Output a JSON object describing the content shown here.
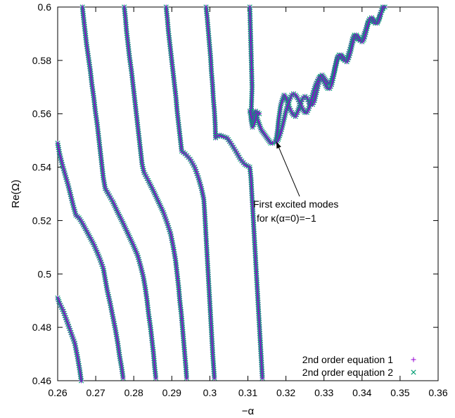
{
  "chart_data": {
    "type": "scatter",
    "xlabel": "−α",
    "ylabel": "Re(Ω)",
    "xlim": [
      0.26,
      0.36
    ],
    "ylim": [
      0.46,
      0.6
    ],
    "xticks": [
      "0.26",
      "0.27",
      "0.28",
      "0.29",
      "0.3",
      "0.31",
      "0.32",
      "0.33",
      "0.34",
      "0.35",
      "0.36"
    ],
    "yticks": [
      "0.46",
      "0.48",
      "0.5",
      "0.52",
      "0.54",
      "0.56",
      "0.58",
      "0.6"
    ],
    "grid": false,
    "legend_position": "bottom-right",
    "annotation": {
      "lines": [
        "First excited modes",
        "for κ(α=0)=−1"
      ],
      "arrow_to": [
        0.3175,
        0.5495
      ],
      "text_at": [
        0.321,
        0.528
      ]
    },
    "series": [
      {
        "name": "2nd order equation 1",
        "marker": "+",
        "color": "#9400d3"
      },
      {
        "name": "2nd order equation 2",
        "marker": "x",
        "color": "#009e73"
      }
    ],
    "branches": [
      [
        [
          0.26,
          0.491
        ],
        [
          0.2605,
          0.489
        ],
        [
          0.2615,
          0.486
        ],
        [
          0.2625,
          0.482
        ],
        [
          0.2635,
          0.478
        ],
        [
          0.2645,
          0.474
        ],
        [
          0.2652,
          0.469
        ],
        [
          0.2658,
          0.464
        ],
        [
          0.2662,
          0.46
        ]
      ],
      [
        [
          0.26,
          0.549
        ],
        [
          0.2605,
          0.545
        ],
        [
          0.2612,
          0.541
        ],
        [
          0.262,
          0.537
        ],
        [
          0.2628,
          0.533
        ],
        [
          0.2635,
          0.529
        ],
        [
          0.2642,
          0.525
        ],
        [
          0.2648,
          0.522
        ],
        [
          0.2656,
          0.521
        ],
        [
          0.2665,
          0.519
        ],
        [
          0.268,
          0.515
        ],
        [
          0.2695,
          0.511
        ],
        [
          0.271,
          0.506
        ],
        [
          0.272,
          0.502
        ],
        [
          0.2725,
          0.498
        ],
        [
          0.273,
          0.494
        ],
        [
          0.2738,
          0.489
        ],
        [
          0.2745,
          0.484
        ],
        [
          0.2752,
          0.479
        ],
        [
          0.2758,
          0.474
        ],
        [
          0.2763,
          0.469
        ],
        [
          0.2768,
          0.465
        ],
        [
          0.2772,
          0.461
        ]
      ],
      [
        [
          0.2665,
          0.6
        ],
        [
          0.2668,
          0.596
        ],
        [
          0.2672,
          0.591
        ],
        [
          0.2676,
          0.586
        ],
        [
          0.2681,
          0.581
        ],
        [
          0.2686,
          0.576
        ],
        [
          0.269,
          0.571
        ],
        [
          0.2695,
          0.566
        ],
        [
          0.2699,
          0.561
        ],
        [
          0.2704,
          0.556
        ],
        [
          0.2708,
          0.551
        ],
        [
          0.2712,
          0.546
        ],
        [
          0.2716,
          0.541
        ],
        [
          0.272,
          0.536
        ],
        [
          0.2725,
          0.532
        ],
        [
          0.2733,
          0.53
        ],
        [
          0.2745,
          0.527
        ],
        [
          0.2758,
          0.523
        ],
        [
          0.2772,
          0.519
        ],
        [
          0.2785,
          0.515
        ],
        [
          0.2798,
          0.511
        ],
        [
          0.281,
          0.507
        ],
        [
          0.2818,
          0.503
        ],
        [
          0.2825,
          0.499
        ],
        [
          0.283,
          0.495
        ],
        [
          0.2835,
          0.49
        ],
        [
          0.2839,
          0.485
        ],
        [
          0.2844,
          0.48
        ],
        [
          0.2848,
          0.475
        ],
        [
          0.2852,
          0.47
        ],
        [
          0.2855,
          0.465
        ],
        [
          0.2858,
          0.461
        ]
      ],
      [
        [
          0.2775,
          0.6
        ],
        [
          0.2778,
          0.596
        ],
        [
          0.2781,
          0.591
        ],
        [
          0.2785,
          0.586
        ],
        [
          0.2789,
          0.581
        ],
        [
          0.2794,
          0.576
        ],
        [
          0.2798,
          0.571
        ],
        [
          0.2802,
          0.566
        ],
        [
          0.2806,
          0.561
        ],
        [
          0.281,
          0.556
        ],
        [
          0.2814,
          0.551
        ],
        [
          0.2818,
          0.546
        ],
        [
          0.2822,
          0.541
        ],
        [
          0.2827,
          0.538
        ],
        [
          0.2838,
          0.535
        ],
        [
          0.2852,
          0.531
        ],
        [
          0.2865,
          0.527
        ],
        [
          0.2878,
          0.523
        ],
        [
          0.2888,
          0.519
        ],
        [
          0.2897,
          0.515
        ],
        [
          0.2904,
          0.51
        ],
        [
          0.291,
          0.505
        ],
        [
          0.2914,
          0.5
        ],
        [
          0.2918,
          0.495
        ],
        [
          0.2921,
          0.49
        ],
        [
          0.2925,
          0.485
        ],
        [
          0.2928,
          0.48
        ],
        [
          0.2931,
          0.475
        ],
        [
          0.2934,
          0.47
        ],
        [
          0.2937,
          0.465
        ],
        [
          0.2939,
          0.461
        ]
      ],
      [
        [
          0.2885,
          0.6
        ],
        [
          0.2888,
          0.596
        ],
        [
          0.2891,
          0.591
        ],
        [
          0.2895,
          0.586
        ],
        [
          0.2899,
          0.581
        ],
        [
          0.2903,
          0.576
        ],
        [
          0.2907,
          0.571
        ],
        [
          0.2911,
          0.566
        ],
        [
          0.2914,
          0.561
        ],
        [
          0.2918,
          0.556
        ],
        [
          0.2922,
          0.551
        ],
        [
          0.2926,
          0.546
        ],
        [
          0.2935,
          0.545
        ],
        [
          0.2948,
          0.543
        ],
        [
          0.296,
          0.54
        ],
        [
          0.297,
          0.536
        ],
        [
          0.2978,
          0.532
        ],
        [
          0.2984,
          0.528
        ],
        [
          0.2986,
          0.524
        ],
        [
          0.2988,
          0.519
        ],
        [
          0.299,
          0.514
        ],
        [
          0.2992,
          0.509
        ],
        [
          0.2994,
          0.504
        ],
        [
          0.2996,
          0.499
        ],
        [
          0.2998,
          0.494
        ],
        [
          0.3,
          0.489
        ],
        [
          0.3002,
          0.484
        ],
        [
          0.3004,
          0.479
        ],
        [
          0.3006,
          0.474
        ],
        [
          0.3008,
          0.469
        ],
        [
          0.301,
          0.465
        ],
        [
          0.3012,
          0.461
        ]
      ],
      [
        [
          0.299,
          0.6
        ],
        [
          0.2993,
          0.596
        ],
        [
          0.2996,
          0.591
        ],
        [
          0.2999,
          0.586
        ],
        [
          0.3002,
          0.581
        ],
        [
          0.3004,
          0.576
        ],
        [
          0.3007,
          0.571
        ],
        [
          0.3009,
          0.566
        ],
        [
          0.3012,
          0.561
        ],
        [
          0.3014,
          0.556
        ],
        [
          0.3015,
          0.551
        ],
        [
          0.3025,
          0.552
        ],
        [
          0.3045,
          0.551
        ],
        [
          0.3055,
          0.549
        ],
        [
          0.3068,
          0.546
        ],
        [
          0.308,
          0.543
        ],
        [
          0.3092,
          0.541
        ],
        [
          0.3105,
          0.54
        ],
        [
          0.3108,
          0.536
        ],
        [
          0.311,
          0.531
        ],
        [
          0.3112,
          0.526
        ],
        [
          0.3114,
          0.521
        ],
        [
          0.3116,
          0.516
        ],
        [
          0.3118,
          0.511
        ],
        [
          0.312,
          0.506
        ],
        [
          0.3122,
          0.501
        ],
        [
          0.3124,
          0.496
        ],
        [
          0.3126,
          0.491
        ],
        [
          0.3128,
          0.486
        ],
        [
          0.313,
          0.481
        ],
        [
          0.3132,
          0.476
        ],
        [
          0.3134,
          0.471
        ],
        [
          0.3136,
          0.466
        ],
        [
          0.3138,
          0.461
        ]
      ],
      [
        [
          0.3105,
          0.6
        ],
        [
          0.3106,
          0.595
        ],
        [
          0.3107,
          0.59
        ],
        [
          0.3108,
          0.585
        ],
        [
          0.3109,
          0.58
        ],
        [
          0.311,
          0.575
        ],
        [
          0.3111,
          0.57
        ],
        [
          0.311,
          0.566
        ],
        [
          0.3109,
          0.562
        ],
        [
          0.3108,
          0.558
        ],
        [
          0.3112,
          0.555
        ],
        [
          0.3115,
          0.56
        ],
        [
          0.312,
          0.561
        ],
        [
          0.3125,
          0.558
        ],
        [
          0.313,
          0.556
        ],
        [
          0.3135,
          0.554
        ],
        [
          0.314,
          0.553
        ],
        [
          0.3145,
          0.552
        ],
        [
          0.315,
          0.551
        ],
        [
          0.3155,
          0.55
        ],
        [
          0.316,
          0.549
        ],
        [
          0.3165,
          0.549
        ],
        [
          0.3172,
          0.5495
        ],
        [
          0.3175,
          0.551
        ],
        [
          0.3178,
          0.554
        ],
        [
          0.318,
          0.557
        ],
        [
          0.3183,
          0.56
        ],
        [
          0.3186,
          0.563
        ],
        [
          0.319,
          0.565
        ],
        [
          0.3195,
          0.567
        ],
        [
          0.32,
          0.566
        ],
        [
          0.3205,
          0.564
        ],
        [
          0.321,
          0.562
        ],
        [
          0.3215,
          0.5605
        ],
        [
          0.322,
          0.5595
        ],
        [
          0.3225,
          0.559
        ],
        [
          0.323,
          0.5605
        ],
        [
          0.3235,
          0.5625
        ],
        [
          0.324,
          0.5645
        ],
        [
          0.3245,
          0.566
        ],
        [
          0.325,
          0.5665
        ],
        [
          0.3255,
          0.566
        ],
        [
          0.326,
          0.5645
        ],
        [
          0.3265,
          0.5635
        ],
        [
          0.327,
          0.5635
        ],
        [
          0.3275,
          0.565
        ],
        [
          0.328,
          0.568
        ],
        [
          0.3285,
          0.571
        ],
        [
          0.329,
          0.5735
        ],
        [
          0.3295,
          0.5745
        ],
        [
          0.33,
          0.5735
        ],
        [
          0.3305,
          0.5725
        ],
        [
          0.331,
          0.5715
        ],
        [
          0.3315,
          0.5715
        ],
        [
          0.332,
          0.5725
        ],
        [
          0.3325,
          0.575
        ],
        [
          0.333,
          0.578
        ],
        [
          0.3335,
          0.581
        ],
        [
          0.334,
          0.582
        ],
        [
          0.3345,
          0.5815
        ],
        [
          0.335,
          0.5805
        ],
        [
          0.3355,
          0.58
        ],
        [
          0.336,
          0.5805
        ],
        [
          0.3365,
          0.5825
        ],
        [
          0.337,
          0.585
        ],
        [
          0.3375,
          0.588
        ],
        [
          0.338,
          0.5895
        ],
        [
          0.3385,
          0.589
        ],
        [
          0.339,
          0.588
        ],
        [
          0.3395,
          0.5875
        ],
        [
          0.34,
          0.588
        ],
        [
          0.3405,
          0.5895
        ],
        [
          0.341,
          0.5915
        ],
        [
          0.3415,
          0.594
        ],
        [
          0.342,
          0.5955
        ],
        [
          0.3425,
          0.5955
        ],
        [
          0.343,
          0.5945
        ],
        [
          0.3435,
          0.594
        ],
        [
          0.344,
          0.5945
        ],
        [
          0.3445,
          0.596
        ],
        [
          0.345,
          0.598
        ],
        [
          0.3455,
          0.5995
        ],
        [
          0.346,
          0.6
        ]
      ],
      [
        [
          0.3105,
          0.561
        ],
        [
          0.311,
          0.558
        ],
        [
          0.3115,
          0.556
        ],
        [
          0.312,
          0.558
        ],
        [
          0.3123,
          0.56
        ],
        [
          0.3126,
          0.5605
        ],
        [
          0.313,
          0.56
        ]
      ],
      [
        [
          0.3175,
          0.5495
        ],
        [
          0.318,
          0.5505
        ],
        [
          0.3185,
          0.5525
        ],
        [
          0.319,
          0.555
        ],
        [
          0.3195,
          0.558
        ],
        [
          0.32,
          0.561
        ],
        [
          0.3205,
          0.5635
        ],
        [
          0.321,
          0.5655
        ],
        [
          0.3215,
          0.567
        ],
        [
          0.322,
          0.5675
        ],
        [
          0.3225,
          0.567
        ],
        [
          0.323,
          0.566
        ],
        [
          0.3235,
          0.5645
        ],
        [
          0.324,
          0.563
        ],
        [
          0.3245,
          0.5615
        ],
        [
          0.325,
          0.5605
        ],
        [
          0.3255,
          0.5605
        ],
        [
          0.326,
          0.562
        ],
        [
          0.3265,
          0.5645
        ],
        [
          0.327,
          0.567
        ],
        [
          0.3275,
          0.5695
        ],
        [
          0.328,
          0.5715
        ],
        [
          0.3285,
          0.573
        ],
        [
          0.329,
          0.574
        ],
        [
          0.3295,
          0.573
        ],
        [
          0.33,
          0.572
        ],
        [
          0.3305,
          0.5705
        ],
        [
          0.331,
          0.5695
        ],
        [
          0.3315,
          0.5695
        ],
        [
          0.332,
          0.571
        ],
        [
          0.3325,
          0.574
        ],
        [
          0.333,
          0.5775
        ],
        [
          0.3335,
          0.5805
        ],
        [
          0.334,
          0.582
        ],
        [
          0.3345,
          0.582
        ],
        [
          0.335,
          0.581
        ],
        [
          0.3355,
          0.58
        ],
        [
          0.336,
          0.5795
        ],
        [
          0.3365,
          0.581
        ],
        [
          0.337,
          0.5835
        ],
        [
          0.3375,
          0.5865
        ],
        [
          0.338,
          0.589
        ],
        [
          0.3385,
          0.5895
        ],
        [
          0.339,
          0.5885
        ],
        [
          0.3395,
          0.5875
        ],
        [
          0.34,
          0.587
        ],
        [
          0.3405,
          0.588
        ],
        [
          0.341,
          0.5905
        ],
        [
          0.3415,
          0.5935
        ],
        [
          0.342,
          0.5955
        ],
        [
          0.3425,
          0.596
        ],
        [
          0.343,
          0.595
        ],
        [
          0.3435,
          0.594
        ],
        [
          0.344,
          0.594
        ],
        [
          0.3445,
          0.5955
        ],
        [
          0.345,
          0.598
        ],
        [
          0.3455,
          0.6
        ]
      ]
    ]
  }
}
